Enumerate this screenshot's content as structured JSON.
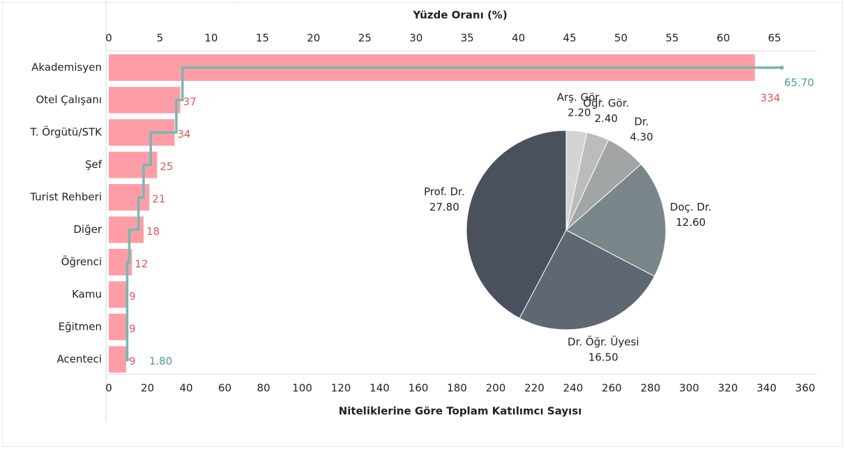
{
  "chart_data": [
    {
      "type": "bar",
      "xlabel": "Niteliklerine Göre Toplam Katılımcı Sayısı",
      "x2label": "Yüzde Oranı (%)",
      "categories": [
        "Akademisyen",
        "Otel Çalışanı",
        "T. Örgütü/STK",
        "Şef",
        "Turist Rehberi",
        "Diğer",
        "Öğrenci",
        "Kamu",
        "Eğitmen",
        "Acenteci"
      ],
      "values": [
        334,
        37,
        34,
        25,
        21,
        18,
        12,
        9,
        9,
        9
      ],
      "color": "#ff9da7",
      "label_color": "#e15759",
      "xlim": [
        0,
        360
      ],
      "xticks": [
        0,
        20,
        40,
        60,
        80,
        100,
        120,
        140,
        160,
        180,
        200,
        220,
        240,
        260,
        280,
        300,
        320,
        340,
        360
      ],
      "x2lim": [
        0,
        68
      ],
      "x2ticks": [
        0,
        5,
        10,
        15,
        20,
        25,
        30,
        35,
        40,
        45,
        50,
        55,
        60,
        65
      ],
      "line": {
        "type": "step",
        "axis": "x2",
        "color": "#76b7b2",
        "label_color": "#4e9a94",
        "values": [
          65.7,
          7.2,
          6.6,
          4.1,
          3.4,
          2.9,
          2.0,
          1.8,
          1.8,
          1.8
        ],
        "value_labels": [
          "65.70",
          null,
          null,
          null,
          null,
          null,
          null,
          null,
          null,
          "1.80"
        ]
      }
    },
    {
      "type": "pie",
      "categories": [
        "Arş. Gör.",
        "Öğr. Gör.",
        "Dr.",
        "Doç. Dr.",
        "Dr. Öğr. Üyesi",
        "Prof. Dr."
      ],
      "values": [
        2.2,
        2.4,
        4.3,
        12.6,
        16.5,
        27.8
      ],
      "value_labels": [
        "2.20",
        "2.40",
        "4.30",
        "12.60",
        "16.50",
        "27.80"
      ],
      "colors": [
        "#d4d4d4",
        "#bcbcbc",
        "#a2a5a6",
        "#7b868a",
        "#5f6872",
        "#4a505c"
      ]
    }
  ]
}
